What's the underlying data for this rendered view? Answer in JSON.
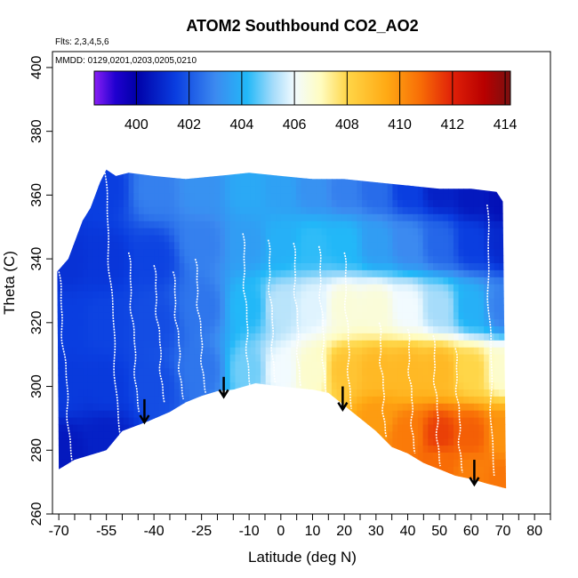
{
  "chart_data": {
    "type": "heatmap",
    "title": "ATOM2 Southbound CO2_AO2",
    "flights_label": "Flts: 2,3,4,5,6",
    "dates_label": "MMDD: 0129,0201,0203,0205,0210",
    "xlabel": "Latitude (deg N)",
    "ylabel": "Theta (C)",
    "xlim": [
      -72,
      85
    ],
    "ylim": [
      260,
      405
    ],
    "x_ticks": [
      -70,
      -55,
      -40,
      -25,
      -10,
      0,
      10,
      20,
      30,
      40,
      50,
      60,
      70,
      80
    ],
    "x_tick_labels": [
      "-70",
      "-55",
      "-40",
      "-25",
      "-10",
      "0",
      "10",
      "20",
      "30",
      "40",
      "50",
      "60",
      "70",
      "80"
    ],
    "x_minor_ticks": [
      -65,
      -60,
      -50,
      -45,
      -35,
      -30,
      -20,
      -15,
      -5,
      5,
      15,
      25,
      35,
      45,
      55,
      65,
      75,
      85
    ],
    "y_ticks": [
      260,
      280,
      300,
      320,
      340,
      360,
      380,
      400
    ],
    "y_tick_labels": [
      "260",
      "280",
      "300",
      "320",
      "340",
      "360",
      "380",
      "400"
    ],
    "colorbar": {
      "min": 398.4,
      "max": 414.2,
      "ticks": [
        400,
        402,
        404,
        406,
        408,
        410,
        412,
        414
      ],
      "tick_labels": [
        "400",
        "402",
        "404",
        "406",
        "408",
        "410",
        "412",
        "414"
      ],
      "stops": [
        [
          398.4,
          "#8a1ff5"
        ],
        [
          399.2,
          "#2000d0"
        ],
        [
          400.0,
          "#0000a8"
        ],
        [
          401.5,
          "#0a3ee0"
        ],
        [
          403.0,
          "#3c8af0"
        ],
        [
          404.2,
          "#22b8f8"
        ],
        [
          405.2,
          "#a6dcfa"
        ],
        [
          406.0,
          "#f2fbff"
        ],
        [
          407.0,
          "#fffcc0"
        ],
        [
          408.0,
          "#ffd648"
        ],
        [
          409.5,
          "#ffaa14"
        ],
        [
          410.8,
          "#f86c06"
        ],
        [
          412.0,
          "#e02008"
        ],
        [
          413.2,
          "#b80000"
        ],
        [
          414.2,
          "#7a1010"
        ]
      ]
    },
    "domain_boundary": {
      "top": [
        [
          -70.5,
          336
        ],
        [
          -67,
          340
        ],
        [
          -62.5,
          352
        ],
        [
          -60,
          356
        ],
        [
          -57,
          364
        ],
        [
          -55,
          368
        ],
        [
          -52,
          366
        ],
        [
          -48,
          367
        ],
        [
          -40,
          366
        ],
        [
          -30,
          365
        ],
        [
          -20,
          366
        ],
        [
          -10,
          367
        ],
        [
          0,
          366
        ],
        [
          10,
          365
        ],
        [
          20,
          365
        ],
        [
          30,
          364
        ],
        [
          40,
          363
        ],
        [
          50,
          362
        ],
        [
          60,
          362
        ],
        [
          68,
          361
        ],
        [
          70,
          358
        ]
      ],
      "bottom": [
        [
          -70,
          274
        ],
        [
          -65,
          277
        ],
        [
          -55,
          280
        ],
        [
          -50,
          286
        ],
        [
          -42,
          289
        ],
        [
          -35,
          292
        ],
        [
          -30,
          295
        ],
        [
          -25,
          297
        ],
        [
          -20,
          298.5
        ],
        [
          -15,
          299
        ],
        [
          -8,
          301
        ],
        [
          0,
          300
        ],
        [
          10,
          299
        ],
        [
          15,
          298
        ],
        [
          20,
          294
        ],
        [
          25,
          290
        ],
        [
          30,
          286
        ],
        [
          35,
          281
        ],
        [
          40,
          279
        ],
        [
          45,
          276
        ],
        [
          50,
          274
        ],
        [
          55,
          272
        ],
        [
          60,
          271
        ],
        [
          65,
          269.5
        ],
        [
          71,
          268
        ]
      ]
    },
    "co2_field_points": [
      {
        "lat": -68,
        "theta": 340,
        "co2": 401.2
      },
      {
        "lat": -68,
        "theta": 320,
        "co2": 401.5
      },
      {
        "lat": -68,
        "theta": 300,
        "co2": 401.4
      },
      {
        "lat": -68,
        "theta": 280,
        "co2": 400.6
      },
      {
        "lat": -55,
        "theta": 362,
        "co2": 401.5
      },
      {
        "lat": -55,
        "theta": 340,
        "co2": 401.3
      },
      {
        "lat": -55,
        "theta": 320,
        "co2": 401.6
      },
      {
        "lat": -55,
        "theta": 300,
        "co2": 401.4
      },
      {
        "lat": -55,
        "theta": 284,
        "co2": 400.8
      },
      {
        "lat": -40,
        "theta": 362,
        "co2": 402.8
      },
      {
        "lat": -40,
        "theta": 340,
        "co2": 401.6
      },
      {
        "lat": -40,
        "theta": 320,
        "co2": 401.8
      },
      {
        "lat": -40,
        "theta": 300,
        "co2": 401.8
      },
      {
        "lat": -25,
        "theta": 362,
        "co2": 403.2
      },
      {
        "lat": -25,
        "theta": 345,
        "co2": 402.8
      },
      {
        "lat": -25,
        "theta": 325,
        "co2": 402.6
      },
      {
        "lat": -25,
        "theta": 305,
        "co2": 402.6
      },
      {
        "lat": -10,
        "theta": 362,
        "co2": 403.8
      },
      {
        "lat": -10,
        "theta": 345,
        "co2": 403.5
      },
      {
        "lat": -10,
        "theta": 325,
        "co2": 404.2
      },
      {
        "lat": -10,
        "theta": 305,
        "co2": 404.8
      },
      {
        "lat": 0,
        "theta": 362,
        "co2": 403.6
      },
      {
        "lat": 0,
        "theta": 345,
        "co2": 404.0
      },
      {
        "lat": 0,
        "theta": 325,
        "co2": 405.4
      },
      {
        "lat": 0,
        "theta": 305,
        "co2": 406.0
      },
      {
        "lat": 10,
        "theta": 362,
        "co2": 403.2
      },
      {
        "lat": 10,
        "theta": 345,
        "co2": 404.3
      },
      {
        "lat": 10,
        "theta": 325,
        "co2": 405.8
      },
      {
        "lat": 10,
        "theta": 305,
        "co2": 406.8
      },
      {
        "lat": 20,
        "theta": 362,
        "co2": 402.8
      },
      {
        "lat": 20,
        "theta": 345,
        "co2": 404.2
      },
      {
        "lat": 20,
        "theta": 325,
        "co2": 406.6
      },
      {
        "lat": 20,
        "theta": 305,
        "co2": 408.6
      },
      {
        "lat": 30,
        "theta": 362,
        "co2": 402.4
      },
      {
        "lat": 30,
        "theta": 345,
        "co2": 403.5
      },
      {
        "lat": 30,
        "theta": 325,
        "co2": 406.6
      },
      {
        "lat": 30,
        "theta": 305,
        "co2": 409.0
      },
      {
        "lat": 30,
        "theta": 290,
        "co2": 409.8
      },
      {
        "lat": 40,
        "theta": 362,
        "co2": 401.5
      },
      {
        "lat": 40,
        "theta": 345,
        "co2": 403.0
      },
      {
        "lat": 40,
        "theta": 325,
        "co2": 406.0
      },
      {
        "lat": 40,
        "theta": 305,
        "co2": 409.0
      },
      {
        "lat": 40,
        "theta": 285,
        "co2": 410.5
      },
      {
        "lat": 50,
        "theta": 362,
        "co2": 400.8
      },
      {
        "lat": 50,
        "theta": 345,
        "co2": 402.3
      },
      {
        "lat": 50,
        "theta": 325,
        "co2": 405.2
      },
      {
        "lat": 50,
        "theta": 305,
        "co2": 409.0
      },
      {
        "lat": 50,
        "theta": 285,
        "co2": 411.5
      },
      {
        "lat": 50,
        "theta": 276,
        "co2": 410.8
      },
      {
        "lat": 60,
        "theta": 360,
        "co2": 400.6
      },
      {
        "lat": 60,
        "theta": 345,
        "co2": 401.5
      },
      {
        "lat": 60,
        "theta": 325,
        "co2": 404.0
      },
      {
        "lat": 60,
        "theta": 305,
        "co2": 408.0
      },
      {
        "lat": 60,
        "theta": 285,
        "co2": 411.0
      },
      {
        "lat": 60,
        "theta": 273,
        "co2": 410.4
      },
      {
        "lat": 70,
        "theta": 358,
        "co2": 400.4
      },
      {
        "lat": 70,
        "theta": 345,
        "co2": 401.0
      },
      {
        "lat": 70,
        "theta": 325,
        "co2": 402.8
      },
      {
        "lat": 70,
        "theta": 305,
        "co2": 406.8
      },
      {
        "lat": 70,
        "theta": 285,
        "co2": 410.0
      },
      {
        "lat": 70,
        "theta": 270,
        "co2": 410.6
      }
    ],
    "profiles": [
      {
        "lat_top": -55.5,
        "lat_bottom": -51,
        "theta_top": 367,
        "theta_bottom": 285
      },
      {
        "lat_top": -48,
        "lat_bottom": -45,
        "theta_top": 342,
        "theta_bottom": 292
      },
      {
        "lat_top": -40,
        "lat_bottom": -37,
        "theta_top": 338,
        "theta_bottom": 295
      },
      {
        "lat_top": -34,
        "lat_bottom": -31,
        "theta_top": 336,
        "theta_bottom": 296
      },
      {
        "lat_top": -27,
        "lat_bottom": -24,
        "theta_top": 340,
        "theta_bottom": 298
      },
      {
        "lat_top": -12,
        "lat_bottom": -10,
        "theta_top": 348,
        "theta_bottom": 300
      },
      {
        "lat_top": -4,
        "lat_bottom": -2,
        "theta_top": 346,
        "theta_bottom": 301
      },
      {
        "lat_top": 4,
        "lat_bottom": 6,
        "theta_top": 345,
        "theta_bottom": 300
      },
      {
        "lat_top": 12,
        "lat_bottom": 14,
        "theta_top": 344,
        "theta_bottom": 298
      },
      {
        "lat_top": 20,
        "lat_bottom": 22,
        "theta_top": 342,
        "theta_bottom": 293
      },
      {
        "lat_top": 31,
        "lat_bottom": 33,
        "theta_top": 320,
        "theta_bottom": 284
      },
      {
        "lat_top": 40,
        "lat_bottom": 42,
        "theta_top": 318,
        "theta_bottom": 279
      },
      {
        "lat_top": 48,
        "lat_bottom": 50,
        "theta_top": 316,
        "theta_bottom": 275
      },
      {
        "lat_top": 55,
        "lat_bottom": 57,
        "theta_top": 312,
        "theta_bottom": 273
      },
      {
        "lat_top": 65,
        "lat_bottom": 67,
        "theta_top": 357,
        "theta_bottom": 272
      },
      {
        "lat_top": -70,
        "lat_bottom": -66,
        "theta_top": 336,
        "theta_bottom": 276
      }
    ],
    "arrows": [
      {
        "lat": -43,
        "theta_top": 296,
        "theta_bottom": 289
      },
      {
        "lat": -18,
        "theta_top": 303,
        "theta_bottom": 297
      },
      {
        "lat": 19.5,
        "theta_top": 300,
        "theta_bottom": 293
      },
      {
        "lat": 61,
        "theta_top": 277,
        "theta_bottom": 269.5
      }
    ]
  }
}
